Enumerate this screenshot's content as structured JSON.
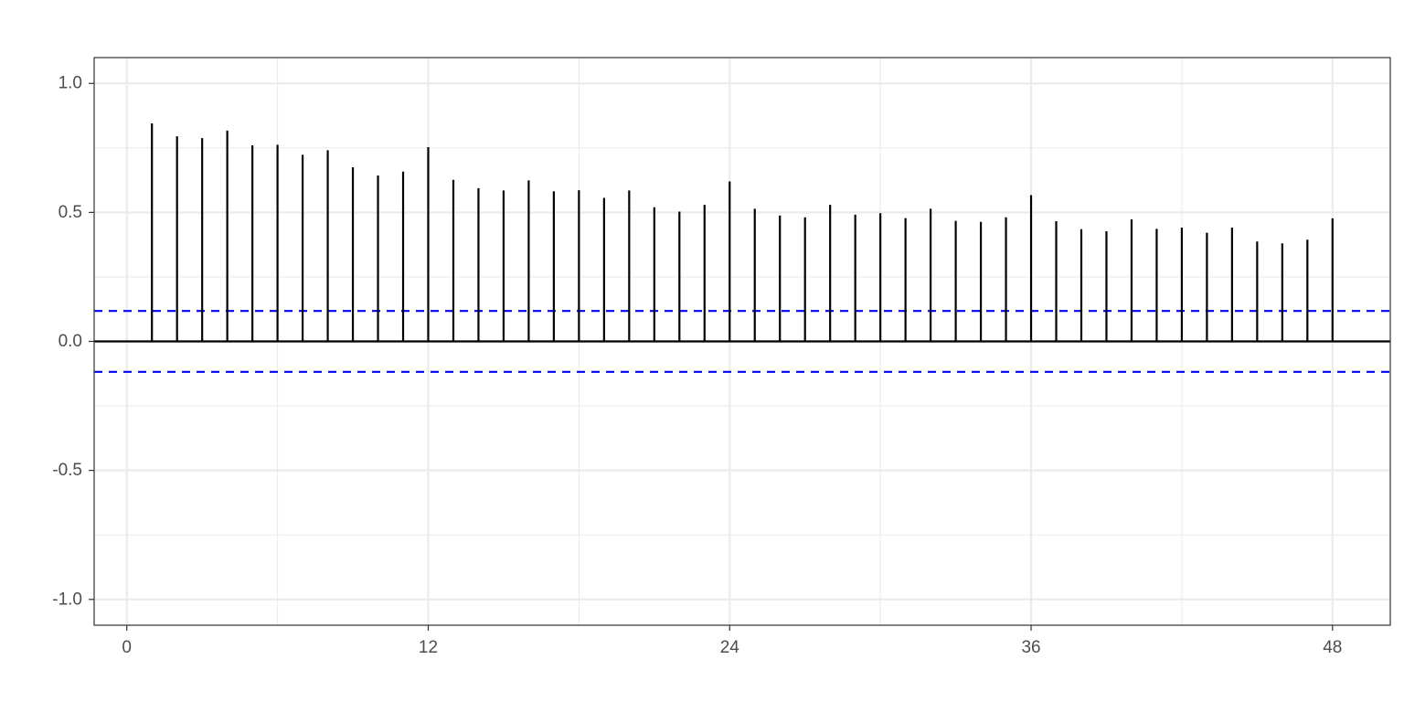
{
  "chart_data": {
    "type": "bar",
    "title": "",
    "xlabel": "",
    "ylabel": "",
    "xlim": [
      -1.3,
      50.3
    ],
    "ylim": [
      -1.1,
      1.1
    ],
    "x_ticks": [
      0,
      12,
      24,
      36,
      48
    ],
    "x_tick_labels": [
      "0",
      "12",
      "24",
      "36",
      "48"
    ],
    "y_ticks": [
      1.0,
      0.5,
      0.0,
      -0.5,
      -1.0
    ],
    "y_tick_labels": [
      "1.0",
      "0.5",
      "0.0",
      "-0.5",
      "-1.0"
    ],
    "grid": true,
    "confidence_bound": 0.118,
    "colors": {
      "bars": "#000000",
      "zero_line": "#000000",
      "confidence_lines": "#0000ff",
      "grid": "#ebebeb",
      "panel_border": "#333333",
      "tick_text": "#4d4d4d"
    },
    "lags": [
      1,
      2,
      3,
      4,
      5,
      6,
      7,
      8,
      9,
      10,
      11,
      12,
      13,
      14,
      15,
      16,
      17,
      18,
      19,
      20,
      21,
      22,
      23,
      24,
      25,
      26,
      27,
      28,
      29,
      30,
      31,
      32,
      33,
      34,
      35,
      36,
      37,
      38,
      39,
      40,
      41,
      42,
      43,
      44,
      45,
      46,
      47,
      48
    ],
    "values": [
      0.845,
      0.795,
      0.788,
      0.817,
      0.76,
      0.762,
      0.723,
      0.741,
      0.675,
      0.643,
      0.658,
      0.753,
      0.626,
      0.594,
      0.585,
      0.624,
      0.582,
      0.586,
      0.556,
      0.585,
      0.52,
      0.503,
      0.529,
      0.62,
      0.514,
      0.488,
      0.481,
      0.529,
      0.491,
      0.497,
      0.478,
      0.514,
      0.467,
      0.463,
      0.481,
      0.567,
      0.466,
      0.435,
      0.427,
      0.473,
      0.436,
      0.441,
      0.421,
      0.441,
      0.387,
      0.38,
      0.394,
      0.477
    ]
  }
}
